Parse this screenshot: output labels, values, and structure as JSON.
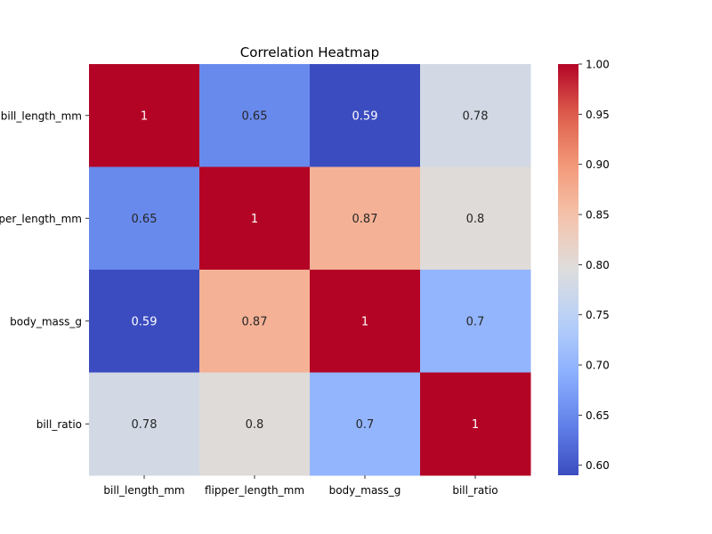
{
  "chart_data": {
    "type": "heatmap",
    "title": "Correlation Heatmap",
    "xlabel": "",
    "ylabel": "",
    "x_categories": [
      "bill_length_mm",
      "flipper_length_mm",
      "body_mass_g",
      "bill_ratio"
    ],
    "y_categories": [
      "bill_length_mm",
      "flipper_length_mm",
      "body_mass_g",
      "bill_ratio"
    ],
    "values": [
      [
        1,
        0.65,
        0.59,
        0.78
      ],
      [
        0.65,
        1,
        0.87,
        0.8
      ],
      [
        0.59,
        0.87,
        1,
        0.7
      ],
      [
        0.78,
        0.8,
        0.7,
        1
      ]
    ],
    "annotations": [
      [
        "1",
        "0.65",
        "0.59",
        "0.78"
      ],
      [
        "0.65",
        "1",
        "0.87",
        "0.8"
      ],
      [
        "0.59",
        "0.87",
        "1",
        "0.7"
      ],
      [
        "0.78",
        "0.8",
        "0.7",
        "1"
      ]
    ],
    "colormap": "coolwarm",
    "colorbar": {
      "range": [
        0.59,
        1.0
      ],
      "ticks": [
        0.6,
        0.65,
        0.7,
        0.75,
        0.8,
        0.85,
        0.9,
        0.95,
        1.0
      ],
      "tick_labels": [
        "0.60",
        "0.65",
        "0.70",
        "0.75",
        "0.80",
        "0.85",
        "0.90",
        "0.95",
        "1.00"
      ]
    },
    "grid": false,
    "legend": "colorbar-right"
  }
}
